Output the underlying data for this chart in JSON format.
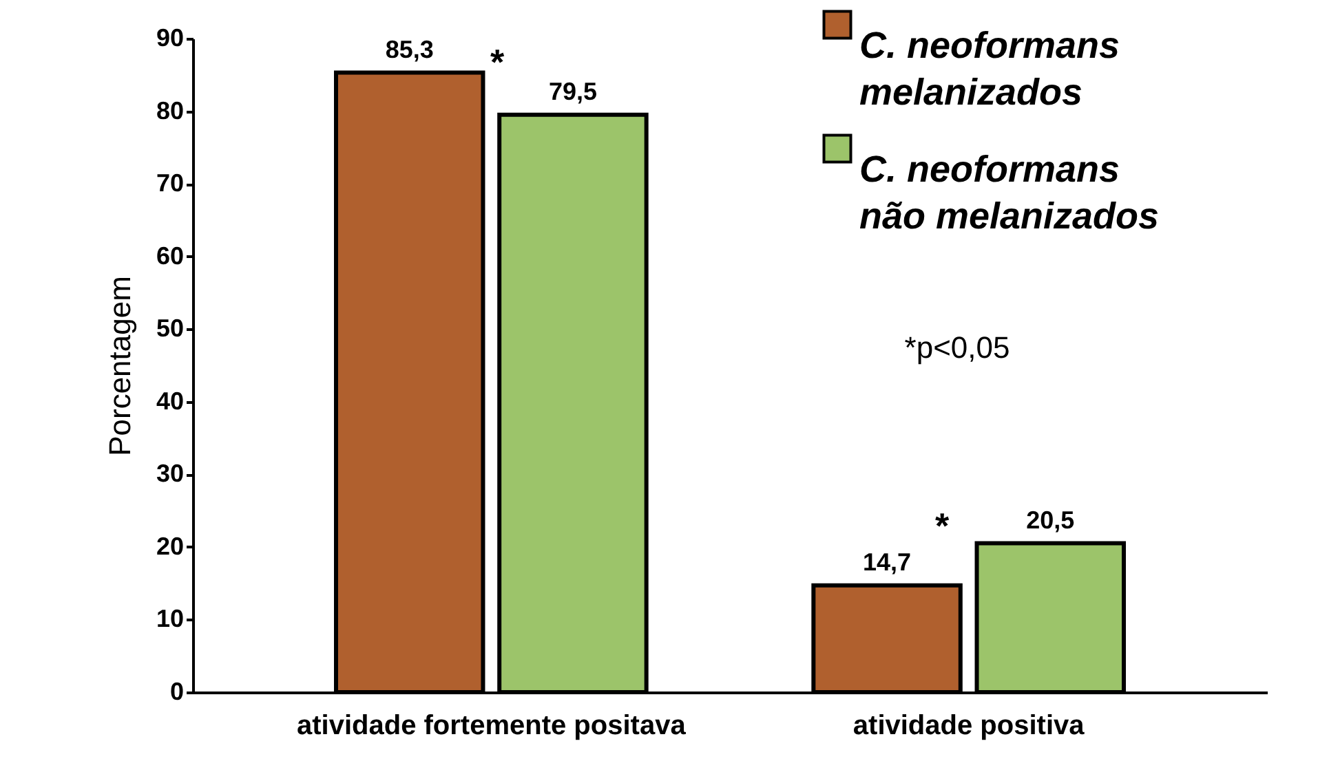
{
  "chart_data": {
    "type": "bar",
    "ylabel": "Porcentagem",
    "categories": [
      "atividade fortemente positava",
      "atividade positiva"
    ],
    "series": [
      {
        "name": "C. neoformans melanizados",
        "color": "#b0602e",
        "values": [
          85.3,
          14.7
        ],
        "value_labels": [
          "85,3",
          "14,7"
        ]
      },
      {
        "name": "C. neoformans não melanizados",
        "color": "#9cc46a",
        "values": [
          79.5,
          20.5
        ],
        "value_labels": [
          "79,5",
          "20,5"
        ]
      }
    ],
    "ylim": [
      0,
      90
    ],
    "yticks": [
      0,
      10,
      20,
      30,
      40,
      50,
      60,
      70,
      80,
      90
    ],
    "grid": false,
    "legend": "top right",
    "annotations": [
      "*",
      "*",
      "*p<0,05"
    ]
  }
}
